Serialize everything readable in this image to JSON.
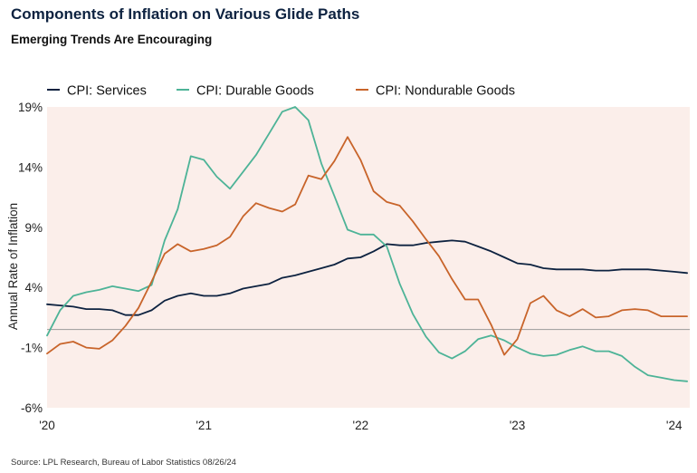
{
  "title": "Components of Inflation on Various Glide Paths",
  "subtitle": "Emerging Trends Are Encouraging",
  "source": "Source: LPL Research, Bureau of Labor Statistics 08/26/24",
  "colors": {
    "plot_bg": "#fbeeea",
    "services": "#0d2240",
    "durable": "#4db397",
    "nondurable": "#c8642a",
    "zero_line": "#9a9a9a"
  },
  "chart_data": {
    "type": "line",
    "ylabel": "Annual Rate of Inflation",
    "xlabel": "",
    "ylim": [
      -6,
      19
    ],
    "xlim": [
      2020.0,
      2024.1
    ],
    "y_ticks": [
      19,
      14,
      9,
      4,
      -1,
      -6
    ],
    "y_tick_labels": [
      "19%",
      "14%",
      "9%",
      "4%",
      "-1%",
      "-6%"
    ],
    "x_ticks": [
      2020,
      2021,
      2022,
      2023,
      2024
    ],
    "x_tick_labels": [
      "'20",
      "'21",
      "'22",
      "'23",
      "'24"
    ],
    "reference_line": 0.5,
    "legend_position": "top",
    "series": [
      {
        "name": "CPI: Services",
        "key": "services",
        "x": [
          2020.0,
          2020.083,
          2020.167,
          2020.25,
          2020.333,
          2020.417,
          2020.5,
          2020.583,
          2020.667,
          2020.75,
          2020.833,
          2020.917,
          2021.0,
          2021.083,
          2021.167,
          2021.25,
          2021.333,
          2021.417,
          2021.5,
          2021.583,
          2021.667,
          2021.75,
          2021.833,
          2021.917,
          2022.0,
          2022.083,
          2022.167,
          2022.25,
          2022.333,
          2022.417,
          2022.5,
          2022.583,
          2022.667,
          2022.75,
          2022.833,
          2022.917,
          2023.0,
          2023.083,
          2023.167,
          2023.25,
          2023.333,
          2023.417,
          2023.5,
          2023.583,
          2023.667,
          2023.75,
          2023.833,
          2023.917,
          2024.0,
          2024.083
        ],
        "values": [
          2.6,
          2.5,
          2.4,
          2.2,
          2.2,
          2.1,
          1.7,
          1.7,
          2.1,
          2.9,
          3.3,
          3.5,
          3.3,
          3.3,
          3.5,
          3.9,
          4.1,
          4.3,
          4.8,
          5.0,
          5.3,
          5.6,
          5.9,
          6.4,
          6.5,
          7.0,
          7.6,
          7.5,
          7.5,
          7.7,
          7.8,
          7.9,
          7.8,
          7.4,
          7.0,
          6.5,
          6.0,
          5.9,
          5.6,
          5.5,
          5.5,
          5.5,
          5.4,
          5.4,
          5.5,
          5.5,
          5.5,
          5.4,
          5.3,
          5.2
        ]
      },
      {
        "name": "CPI: Durable Goods",
        "key": "durable",
        "x": [
          2020.0,
          2020.083,
          2020.167,
          2020.25,
          2020.333,
          2020.417,
          2020.5,
          2020.583,
          2020.667,
          2020.75,
          2020.833,
          2020.917,
          2021.0,
          2021.083,
          2021.167,
          2021.25,
          2021.333,
          2021.417,
          2021.5,
          2021.583,
          2021.667,
          2021.75,
          2021.833,
          2021.917,
          2022.0,
          2022.083,
          2022.167,
          2022.25,
          2022.333,
          2022.417,
          2022.5,
          2022.583,
          2022.667,
          2022.75,
          2022.833,
          2022.917,
          2023.0,
          2023.083,
          2023.167,
          2023.25,
          2023.333,
          2023.417,
          2023.5,
          2023.583,
          2023.667,
          2023.75,
          2023.833,
          2023.917,
          2024.0,
          2024.083
        ],
        "values": [
          0.0,
          2.1,
          3.3,
          3.6,
          3.8,
          4.1,
          3.9,
          3.7,
          4.2,
          7.9,
          10.5,
          14.9,
          14.6,
          13.2,
          12.2,
          13.6,
          15.0,
          16.8,
          18.6,
          19.0,
          17.9,
          14.3,
          11.6,
          8.8,
          8.4,
          8.4,
          7.4,
          4.3,
          1.8,
          -0.1,
          -1.4,
          -1.9,
          -1.3,
          -0.3,
          0.0,
          -0.4,
          -1.0,
          -1.5,
          -1.7,
          -1.6,
          -1.2,
          -0.9,
          -1.3,
          -1.3,
          -1.7,
          -2.6,
          -3.3,
          -3.5,
          -3.7,
          -3.8
        ]
      },
      {
        "name": "CPI: Nondurable Goods",
        "key": "nondurable",
        "x": [
          2020.0,
          2020.083,
          2020.167,
          2020.25,
          2020.333,
          2020.417,
          2020.5,
          2020.583,
          2020.667,
          2020.75,
          2020.833,
          2020.917,
          2021.0,
          2021.083,
          2021.167,
          2021.25,
          2021.333,
          2021.417,
          2021.5,
          2021.583,
          2021.667,
          2021.75,
          2021.833,
          2021.917,
          2022.0,
          2022.083,
          2022.167,
          2022.25,
          2022.333,
          2022.417,
          2022.5,
          2022.583,
          2022.667,
          2022.75,
          2022.833,
          2022.917,
          2023.0,
          2023.083,
          2023.167,
          2023.25,
          2023.333,
          2023.417,
          2023.5,
          2023.583,
          2023.667,
          2023.75,
          2023.833,
          2023.917,
          2024.0,
          2024.083
        ],
        "values": [
          -1.5,
          -0.7,
          -0.5,
          -1.0,
          -1.1,
          -0.4,
          0.8,
          2.3,
          4.5,
          6.8,
          7.6,
          7.0,
          7.2,
          7.5,
          8.2,
          9.9,
          11.0,
          10.6,
          10.3,
          10.9,
          13.3,
          13.0,
          14.5,
          16.5,
          14.6,
          12.0,
          11.1,
          10.8,
          9.5,
          8.0,
          6.6,
          4.7,
          3.0,
          3.0,
          0.9,
          -1.6,
          -0.3,
          2.7,
          3.3,
          2.1,
          1.6,
          2.2,
          1.5,
          1.6,
          2.1,
          2.2,
          2.1,
          1.6,
          1.6,
          1.6
        ]
      }
    ]
  }
}
